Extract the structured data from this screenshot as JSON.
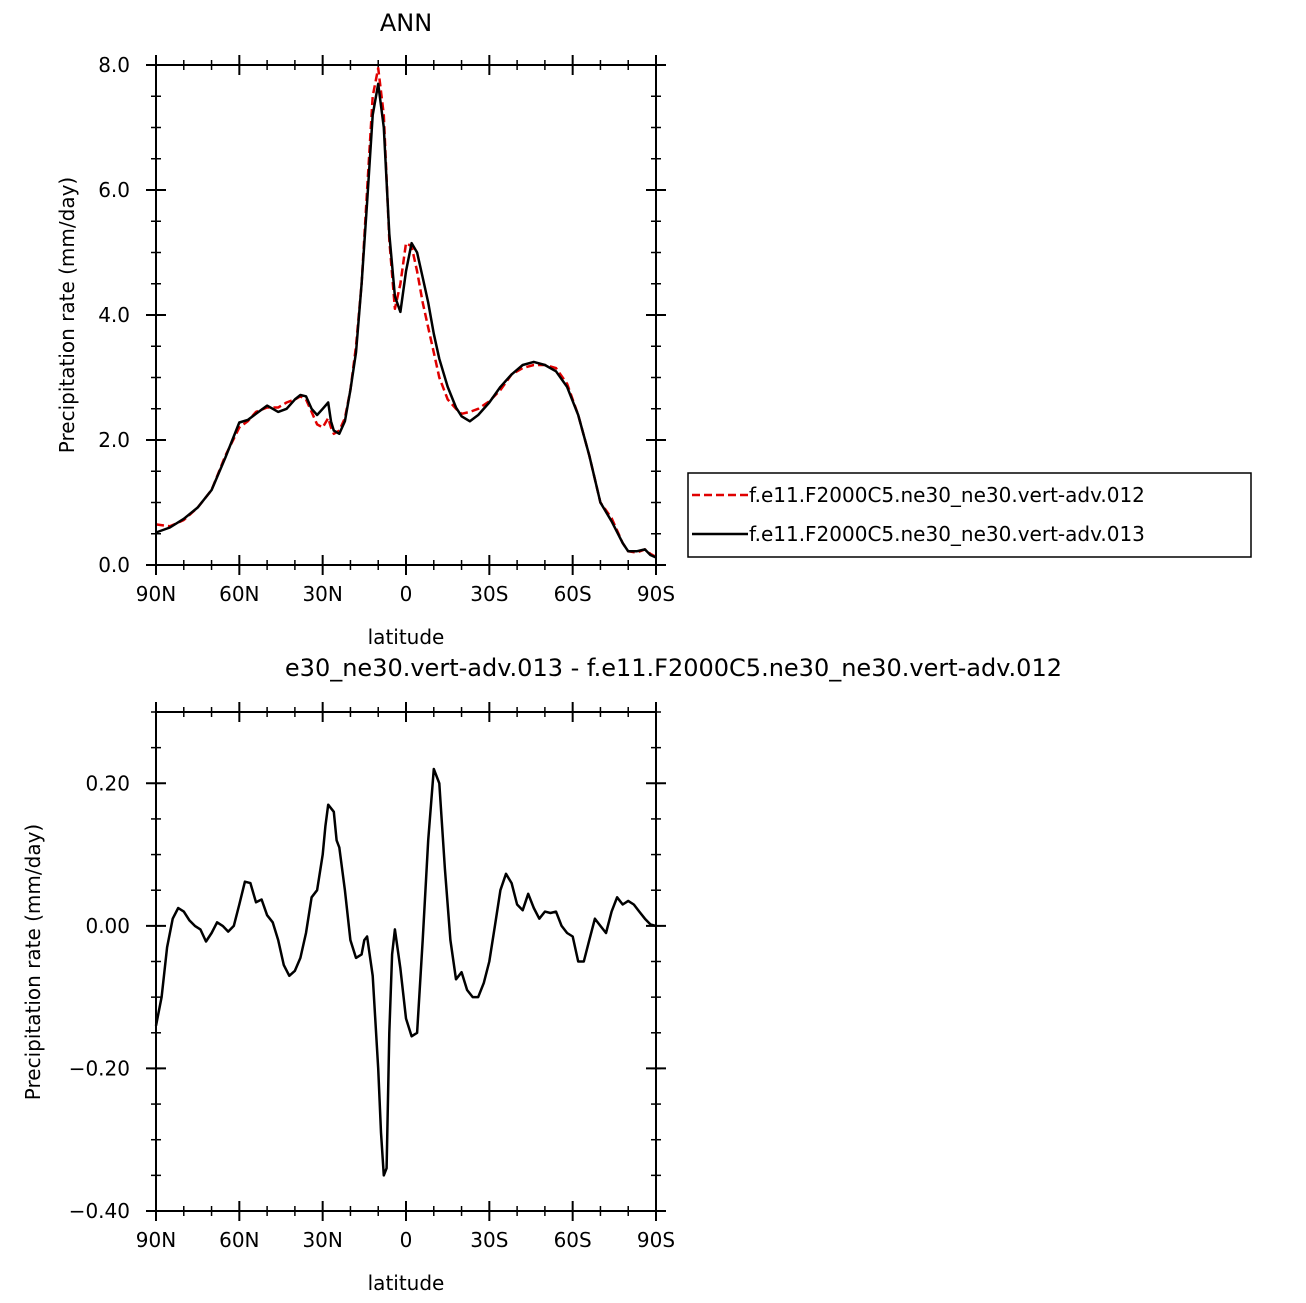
{
  "chart_data": [
    {
      "type": "line",
      "title": "ANN",
      "xlabel": "latitude",
      "ylabel": "Precipitation rate (mm/day)",
      "xlim": [
        90,
        -90
      ],
      "ylim": [
        0,
        8
      ],
      "x_ticks": [
        {
          "value": 90,
          "label": "90N"
        },
        {
          "value": 60,
          "label": "60N"
        },
        {
          "value": 30,
          "label": "30N"
        },
        {
          "value": 0,
          "label": "0"
        },
        {
          "value": -30,
          "label": "30S"
        },
        {
          "value": -60,
          "label": "60S"
        },
        {
          "value": -90,
          "label": "90S"
        }
      ],
      "y_ticks": [
        {
          "value": 0,
          "label": "0.0"
        },
        {
          "value": 2,
          "label": "2.0"
        },
        {
          "value": 4,
          "label": "4.0"
        },
        {
          "value": 6,
          "label": "6.0"
        },
        {
          "value": 8,
          "label": "8.0"
        }
      ],
      "legend": "right",
      "series": [
        {
          "name": "f.e11.F2000C5.ne30_ne30.vert-adv.012",
          "color": "#e00000",
          "dash": "dashed",
          "x": [
            90,
            85,
            80,
            75,
            70,
            65,
            60,
            57,
            54,
            50,
            46,
            43,
            40,
            38,
            36,
            34,
            32,
            30,
            28,
            27,
            26,
            24,
            22,
            20,
            18,
            16,
            14,
            12,
            10,
            8,
            6,
            4,
            2,
            0,
            -2,
            -4,
            -6,
            -8,
            -10,
            -12,
            -15,
            -18,
            -20,
            -23,
            -26,
            -30,
            -34,
            -38,
            -42,
            -46,
            -50,
            -54,
            -58,
            -62,
            -66,
            -70,
            -74,
            -78,
            -80,
            -83,
            -86,
            -88,
            -90
          ],
          "y": [
            0.65,
            0.62,
            0.72,
            0.92,
            1.2,
            1.75,
            2.2,
            2.3,
            2.45,
            2.52,
            2.52,
            2.6,
            2.65,
            2.7,
            2.65,
            2.45,
            2.25,
            2.2,
            2.35,
            2.2,
            2.1,
            2.15,
            2.35,
            2.8,
            3.5,
            4.5,
            6.0,
            7.5,
            7.95,
            7.2,
            5.2,
            4.1,
            4.5,
            5.15,
            5.1,
            4.7,
            4.2,
            3.8,
            3.4,
            3.0,
            2.65,
            2.5,
            2.42,
            2.45,
            2.5,
            2.62,
            2.8,
            3.05,
            3.15,
            3.2,
            3.2,
            3.15,
            2.9,
            2.4,
            1.75,
            1.0,
            0.75,
            0.35,
            0.22,
            0.2,
            0.25,
            0.18,
            0.13
          ]
        },
        {
          "name": "f.e11.F2000C5.ne30_ne30.vert-adv.013",
          "color": "#000000",
          "dash": "solid",
          "x": [
            90,
            85,
            80,
            75,
            70,
            65,
            60,
            57,
            54,
            50,
            46,
            43,
            40,
            38,
            36,
            34,
            32,
            30,
            28,
            27,
            26,
            24,
            22,
            20,
            18,
            16,
            14,
            12,
            10,
            8,
            6,
            4,
            2,
            0,
            -2,
            -4,
            -6,
            -8,
            -10,
            -12,
            -15,
            -18,
            -20,
            -23,
            -26,
            -30,
            -34,
            -38,
            -42,
            -46,
            -50,
            -54,
            -58,
            -62,
            -66,
            -70,
            -74,
            -78,
            -80,
            -83,
            -86,
            -88,
            -90
          ],
          "y": [
            0.52,
            0.6,
            0.74,
            0.92,
            1.2,
            1.72,
            2.28,
            2.32,
            2.42,
            2.55,
            2.45,
            2.5,
            2.65,
            2.72,
            2.7,
            2.5,
            2.4,
            2.5,
            2.6,
            2.3,
            2.15,
            2.1,
            2.3,
            2.8,
            3.4,
            4.5,
            5.8,
            7.2,
            7.7,
            7.0,
            5.3,
            4.3,
            4.05,
            4.7,
            5.15,
            5.0,
            4.6,
            4.2,
            3.7,
            3.3,
            2.85,
            2.52,
            2.38,
            2.3,
            2.4,
            2.6,
            2.85,
            3.05,
            3.2,
            3.25,
            3.2,
            3.1,
            2.85,
            2.4,
            1.75,
            1.0,
            0.7,
            0.35,
            0.22,
            0.22,
            0.25,
            0.16,
            0.12
          ]
        }
      ]
    },
    {
      "type": "line",
      "title": "e30_ne30.vert-adv.013 - f.e11.F2000C5.ne30_ne30.vert-adv.012",
      "xlabel": "latitude",
      "ylabel": "Precipitation rate (mm/day)",
      "xlim": [
        90,
        -90
      ],
      "ylim": [
        -0.4,
        0.3
      ],
      "x_ticks": [
        {
          "value": 90,
          "label": "90N"
        },
        {
          "value": 60,
          "label": "60N"
        },
        {
          "value": 30,
          "label": "30N"
        },
        {
          "value": 0,
          "label": "0"
        },
        {
          "value": -30,
          "label": "30S"
        },
        {
          "value": -60,
          "label": "60S"
        },
        {
          "value": -90,
          "label": "90S"
        }
      ],
      "y_ticks": [
        {
          "value": -0.4,
          "label": "−0.40"
        },
        {
          "value": -0.2,
          "label": "−0.20"
        },
        {
          "value": 0,
          "label": "0.00"
        },
        {
          "value": 0.2,
          "label": "0.20"
        }
      ],
      "series": [
        {
          "color": "#000000",
          "dash": "solid",
          "x": [
            90,
            88,
            86,
            84,
            82,
            80,
            78,
            76,
            74,
            72,
            70,
            68,
            66,
            64,
            62,
            60,
            58,
            56,
            54,
            52,
            50,
            48,
            46,
            44,
            42,
            40,
            38,
            36,
            34,
            32,
            30,
            29,
            28,
            26,
            25,
            24,
            22,
            20,
            18,
            16,
            15,
            14,
            12,
            10,
            9,
            8,
            7,
            6,
            5,
            4,
            2,
            0,
            -2,
            -4,
            -6,
            -8,
            -10,
            -12,
            -14,
            -16,
            -18,
            -20,
            -22,
            -24,
            -26,
            -28,
            -30,
            -32,
            -34,
            -36,
            -38,
            -40,
            -42,
            -44,
            -46,
            -48,
            -50,
            -52,
            -54,
            -56,
            -58,
            -60,
            -62,
            -64,
            -66,
            -68,
            -70,
            -72,
            -74,
            -76,
            -78,
            -80,
            -82,
            -84,
            -86,
            -88,
            -90
          ],
          "y": [
            -0.14,
            -0.1,
            -0.03,
            0.01,
            0.025,
            0.02,
            0.008,
            0.0,
            -0.005,
            -0.022,
            -0.01,
            0.005,
            0.0,
            -0.008,
            0.0,
            0.03,
            0.062,
            0.06,
            0.033,
            0.037,
            0.015,
            0.005,
            -0.02,
            -0.055,
            -0.07,
            -0.063,
            -0.045,
            -0.01,
            0.04,
            0.05,
            0.1,
            0.14,
            0.17,
            0.16,
            0.12,
            0.11,
            0.05,
            -0.02,
            -0.045,
            -0.04,
            -0.02,
            -0.015,
            -0.07,
            -0.2,
            -0.29,
            -0.35,
            -0.34,
            -0.15,
            -0.04,
            -0.005,
            -0.06,
            -0.13,
            -0.155,
            -0.15,
            -0.02,
            0.12,
            0.22,
            0.2,
            0.08,
            -0.02,
            -0.075,
            -0.065,
            -0.09,
            -0.1,
            -0.1,
            -0.08,
            -0.05,
            0.0,
            0.05,
            0.073,
            0.06,
            0.03,
            0.022,
            0.045,
            0.025,
            0.01,
            0.02,
            0.018,
            0.02,
            0.0,
            -0.01,
            -0.015,
            -0.05,
            -0.05,
            -0.02,
            0.01,
            0.0,
            -0.01,
            0.02,
            0.04,
            0.03,
            0.035,
            0.03,
            0.02,
            0.01,
            0.002,
            0.0
          ]
        }
      ]
    }
  ]
}
